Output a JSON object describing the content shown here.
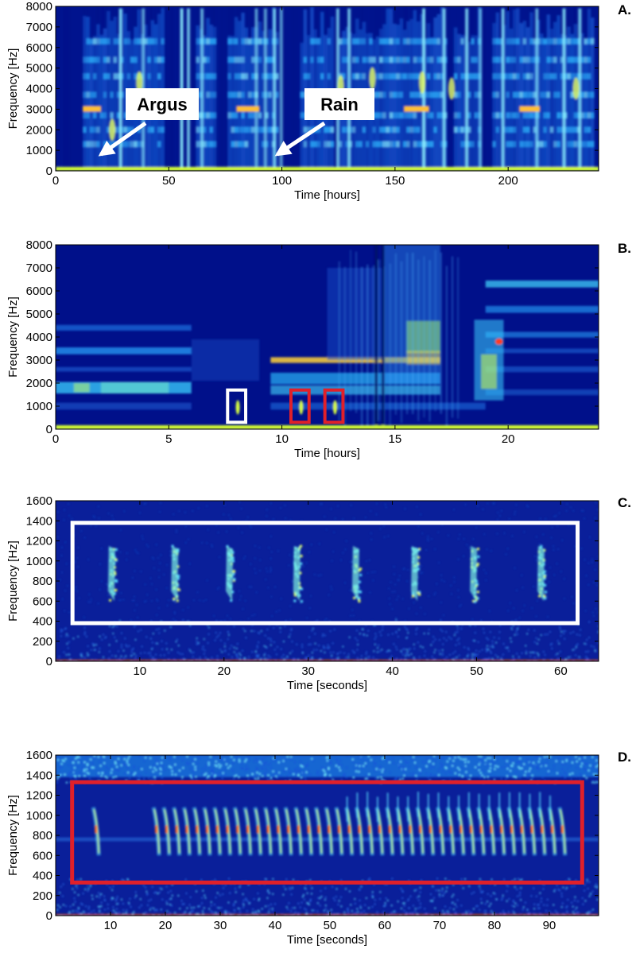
{
  "chart_data": [
    {
      "panel": "A.",
      "type": "heatmap",
      "xlabel": "Time [hours]",
      "ylabel": "Frequency [Hz]",
      "xlim": [
        0,
        240
      ],
      "ylim": [
        0,
        8000
      ],
      "xticks": [
        0,
        50,
        100,
        150,
        200
      ],
      "yticks": [
        0,
        1000,
        2000,
        3000,
        4000,
        5000,
        6000,
        7000,
        8000
      ],
      "colormap": "jet",
      "background_color": "#00108a",
      "annotations": [
        {
          "text": "Argus",
          "box_x": 35,
          "box_y": 4200,
          "arrow_to": [
            20,
            800
          ]
        },
        {
          "text": "Rain",
          "box_x": 118,
          "box_y": 4200,
          "arrow_to": [
            98,
            800
          ]
        }
      ]
    },
    {
      "panel": "B.",
      "type": "heatmap",
      "xlabel": "Time [hours]",
      "ylabel": "Frequency [Hz]",
      "xlim": [
        0,
        24
      ],
      "ylim": [
        0,
        8000
      ],
      "xticks": [
        0,
        5,
        10,
        15,
        20
      ],
      "yticks": [
        0,
        1000,
        2000,
        3000,
        4000,
        5000,
        6000,
        7000,
        8000
      ],
      "colormap": "jet",
      "background_color": "#00108a",
      "boxes": [
        {
          "color": "#ffffff",
          "x": [
            7.6,
            8.4
          ],
          "y": [
            300,
            1700
          ]
        },
        {
          "color": "#e0202a",
          "x": [
            10.4,
            11.2
          ],
          "y": [
            300,
            1700
          ]
        },
        {
          "color": "#e0202a",
          "x": [
            11.9,
            12.7
          ],
          "y": [
            300,
            1700
          ]
        }
      ]
    },
    {
      "panel": "C.",
      "type": "heatmap",
      "xlabel": "Time [seconds]",
      "ylabel": "Frequency [Hz]",
      "xlim": [
        0,
        64.5
      ],
      "ylim": [
        0,
        1600
      ],
      "xticks": [
        10,
        20,
        30,
        40,
        50,
        60
      ],
      "yticks": [
        0,
        200,
        400,
        600,
        800,
        1000,
        1200,
        1400,
        1600
      ],
      "colormap": "jet",
      "background_color": "#0a1f9a",
      "calls_at_seconds": [
        6.5,
        14,
        20.5,
        28.5,
        35.5,
        42.5,
        49.5,
        57.5
      ],
      "boxes": [
        {
          "color": "#ffffff",
          "x": [
            2,
            62
          ],
          "y": [
            380,
            1380
          ]
        }
      ]
    },
    {
      "panel": "D.",
      "type": "heatmap",
      "xlabel": "Time [seconds]",
      "ylabel": "Frequency [Hz]",
      "xlim": [
        0,
        99
      ],
      "ylim": [
        0,
        1600
      ],
      "xticks": [
        10,
        20,
        30,
        40,
        50,
        60,
        70,
        80,
        90
      ],
      "yticks": [
        0,
        200,
        400,
        600,
        800,
        1000,
        1200,
        1400,
        1600
      ],
      "colormap": "jet",
      "background_color": "#0a1f9a",
      "boxes": [
        {
          "color": "#e0202a",
          "x": [
            3,
            96
          ],
          "y": [
            330,
            1330
          ]
        }
      ]
    }
  ]
}
